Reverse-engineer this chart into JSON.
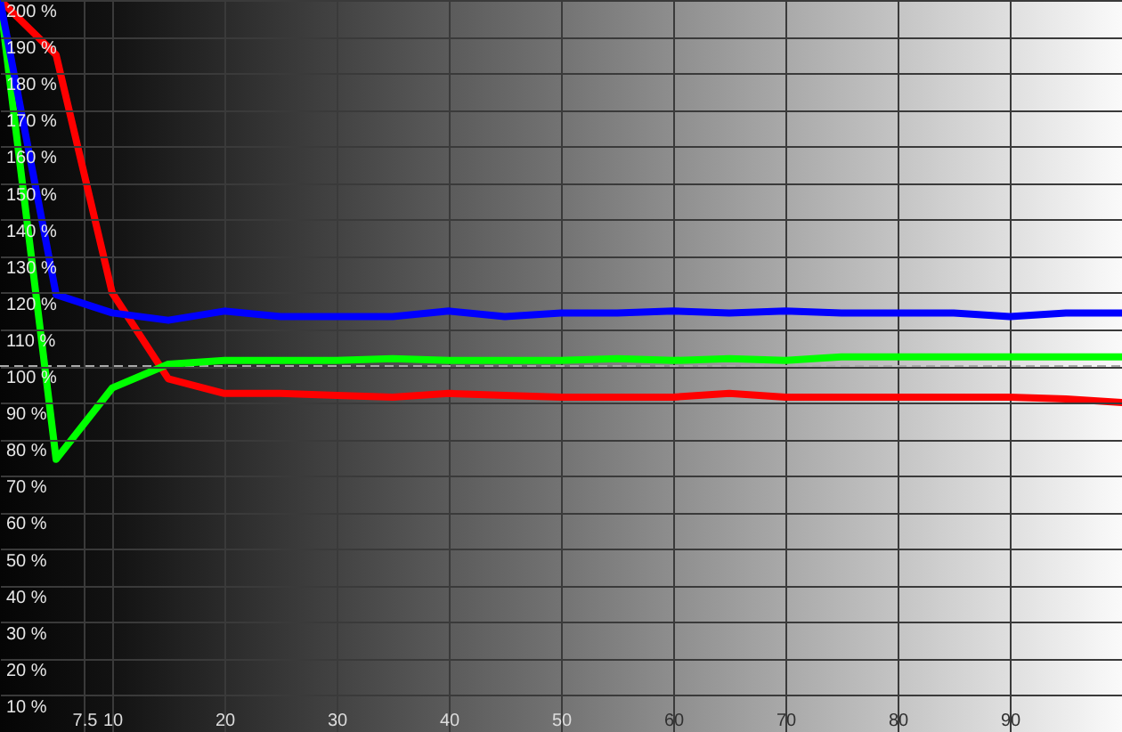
{
  "chart_data": {
    "type": "line",
    "x": [
      0,
      5,
      10,
      15,
      20,
      25,
      30,
      35,
      40,
      45,
      50,
      55,
      60,
      65,
      70,
      75,
      80,
      85,
      90,
      95,
      100
    ],
    "series": [
      {
        "color": "#ff0000",
        "values": [
          200,
          185,
          120,
          96.5,
          92.5,
          92.5,
          92,
          91.5,
          92.5,
          92,
          91.5,
          91.5,
          91.5,
          92.5,
          91.5,
          91.5,
          91.5,
          91.5,
          91.5,
          91,
          90
        ]
      },
      {
        "color": "#00ff00",
        "values": [
          200,
          74.5,
          94,
          100.5,
          101.5,
          101.5,
          101.5,
          102,
          101.5,
          101.5,
          101.5,
          102,
          101.5,
          102,
          101.5,
          102.5,
          102.5,
          102.5,
          102.5,
          102.5,
          102.5
        ]
      },
      {
        "color": "#0000ff",
        "values": [
          200,
          119.5,
          114.5,
          112.5,
          115,
          113.5,
          113.5,
          113.5,
          115,
          113.5,
          114.5,
          114.5,
          115,
          114.5,
          115,
          114.5,
          114.5,
          114.5,
          113.5,
          114.5,
          114.5
        ]
      }
    ],
    "xlim": [
      0,
      100
    ],
    "xticks": [
      7.5,
      10,
      20,
      30,
      40,
      50,
      60,
      70,
      80,
      90
    ],
    "ylim": [
      0,
      200
    ],
    "yticks": [
      {
        "value": 10,
        "label": "10 %"
      },
      {
        "value": 20,
        "label": "20 %"
      },
      {
        "value": 30,
        "label": "30 %"
      },
      {
        "value": 40,
        "label": "40 %"
      },
      {
        "value": 50,
        "label": "50 %"
      },
      {
        "value": 60,
        "label": "60 %"
      },
      {
        "value": 70,
        "label": "70 %"
      },
      {
        "value": 80,
        "label": "80 %"
      },
      {
        "value": 90,
        "label": "90 %"
      },
      {
        "value": 100,
        "label": "100 %"
      },
      {
        "value": 110,
        "label": "110 %"
      },
      {
        "value": 120,
        "label": "120 %"
      },
      {
        "value": 130,
        "label": "130 %"
      },
      {
        "value": 140,
        "label": "140 %"
      },
      {
        "value": 150,
        "label": "150 %"
      },
      {
        "value": 160,
        "label": "160 %"
      },
      {
        "value": 170,
        "label": "170 %"
      },
      {
        "value": 180,
        "label": "180 %"
      },
      {
        "value": 190,
        "label": "190 %"
      },
      {
        "value": 200,
        "label": "200 %"
      }
    ],
    "grid": true,
    "ref_lines": [
      {
        "axis": "y",
        "value": 100,
        "color": "#a8a8a8",
        "line_style": "dashed"
      }
    ]
  }
}
